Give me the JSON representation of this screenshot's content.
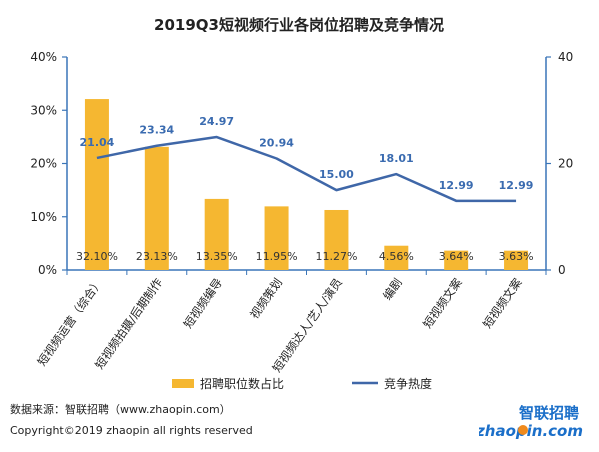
{
  "chart_data": {
    "type": "bar+line",
    "title": "2019Q3短视频行业各岗位招聘及竞争情况",
    "categories": [
      "短视频运营（综合）",
      "短视频拍摄/后期制作",
      "短视频编导",
      "视频策划",
      "短视频达人/艺人/演员",
      "编剧",
      "短视频文案",
      "短视频文案"
    ],
    "series": [
      {
        "name": "招聘职位数占比",
        "kind": "bar",
        "axis": "left",
        "values": [
          32.1,
          23.13,
          13.35,
          11.95,
          11.27,
          4.56,
          3.64,
          3.63
        ],
        "labels": [
          "32.10%",
          "23.13%",
          "13.35%",
          "11.95%",
          "11.27%",
          "4.56%",
          "3.64%",
          "3.63%"
        ]
      },
      {
        "name": "竞争热度",
        "kind": "line",
        "axis": "right",
        "values": [
          21.04,
          23.34,
          24.97,
          20.94,
          15.0,
          18.01,
          12.99,
          12.99
        ],
        "labels": [
          "21.04",
          "23.34",
          "24.97",
          "20.94",
          "15.00",
          "18.01",
          "12.99",
          "12.99"
        ]
      }
    ],
    "left_axis": {
      "ylim": [
        0,
        40
      ],
      "ticks": [
        0,
        10,
        20,
        30,
        40
      ],
      "tick_labels": [
        "0%",
        "10%",
        "20%",
        "30%",
        "40%"
      ]
    },
    "right_axis": {
      "ylim": [
        0,
        40
      ],
      "ticks": [
        0,
        20,
        40
      ],
      "tick_labels": [
        "0",
        "20",
        "40"
      ]
    },
    "grid": false,
    "legend_position": "bottom",
    "colors": {
      "bar": "#f5b731",
      "line": "#3f67a8",
      "axis": "#3a75b8",
      "line_label": "#3a6bb0",
      "text": "#333333"
    }
  },
  "footer": {
    "source": "数据来源：智联招聘（www.zhaopin.com）",
    "copyright": "Copyright©2019 zhaopin all rights reserved"
  },
  "logo": {
    "text_top": "智联招聘",
    "text_bottom": "zhaopin.com",
    "colors": {
      "top": "#1b6fc9",
      "bottom": "#1b6fc9",
      "dot": "#f08a1c"
    }
  }
}
